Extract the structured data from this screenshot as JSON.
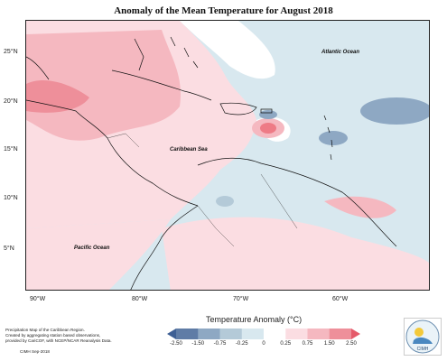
{
  "title": "Anomaly of the Mean Temperature for August 2018",
  "map": {
    "lat_labels": [
      "25°N",
      "20°N",
      "15°N",
      "10°N",
      "5°N"
    ],
    "lon_labels": [
      "90°W",
      "80°W",
      "70°W",
      "60°W"
    ],
    "ocean_labels": {
      "atlantic": "Atlantic Ocean",
      "caribbean": "Caribbean Sea",
      "pacific": "Pacific Ocean"
    },
    "colors": {
      "strong_negative": "#5f7ca6",
      "negative": "#8ea8c3",
      "weak_negative": "#c8dce6",
      "neutral": "#ffffff",
      "weak_positive": "#fbdde2",
      "positive": "#f5b8c0",
      "strong_positive": "#ee7b86"
    }
  },
  "legend": {
    "title": "Temperature Anomaly (°C)",
    "ticks": [
      "-2.50",
      "-1.50",
      "-0.75",
      "-0.25",
      "0",
      "0.25",
      "0.75",
      "1.50",
      "2.50"
    ],
    "colors": [
      "#3d5f94",
      "#5f7ca6",
      "#8ea8c3",
      "#b4cad8",
      "#d8e8ef",
      "#ffffff",
      "#fbdde2",
      "#f5b8c0",
      "#ee8f9a",
      "#e55a6a"
    ]
  },
  "credits": {
    "line1": "Precipitation Map of the Caribbean Region.",
    "line2": "Created by aggregating station based observations,",
    "line3": "provided by CariCOF, with NCEP/NCAR Reanalysis Data.",
    "line4": "CIMH Sep-2018"
  },
  "logo": {
    "text": "CIMH",
    "icon": "cimh-logo-icon"
  }
}
